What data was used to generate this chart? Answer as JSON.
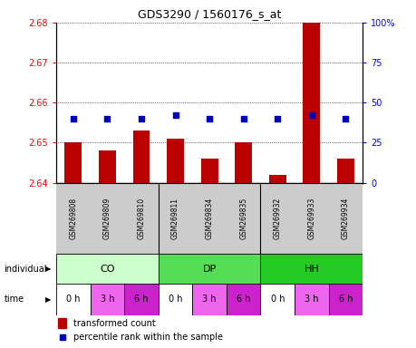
{
  "title": "GDS3290 / 1560176_s_at",
  "samples": [
    "GSM269808",
    "GSM269809",
    "GSM269810",
    "GSM269811",
    "GSM269834",
    "GSM269835",
    "GSM269932",
    "GSM269933",
    "GSM269934"
  ],
  "bar_values": [
    2.65,
    2.648,
    2.653,
    2.651,
    2.646,
    2.65,
    2.642,
    2.68,
    2.646
  ],
  "percentile_values": [
    40,
    40,
    40,
    42,
    40,
    40,
    40,
    42,
    40
  ],
  "ylim_left": [
    2.64,
    2.68
  ],
  "ylim_right": [
    0,
    100
  ],
  "yticks_left": [
    2.64,
    2.65,
    2.66,
    2.67,
    2.68
  ],
  "yticks_right": [
    0,
    25,
    50,
    75,
    100
  ],
  "bar_color": "#bb0000",
  "dot_color": "#0000bb",
  "individual_groups": [
    {
      "label": "CO",
      "start": 0,
      "end": 3,
      "color": "#ccffcc"
    },
    {
      "label": "DP",
      "start": 3,
      "end": 6,
      "color": "#55dd55"
    },
    {
      "label": "HH",
      "start": 6,
      "end": 9,
      "color": "#22cc22"
    }
  ],
  "time_labels": [
    "0 h",
    "3 h",
    "6 h",
    "0 h",
    "3 h",
    "6 h",
    "0 h",
    "3 h",
    "6 h"
  ],
  "time_colors": [
    "#ffffff",
    "#ee66ee",
    "#cc22cc",
    "#ffffff",
    "#ee66ee",
    "#cc22cc",
    "#ffffff",
    "#ee66ee",
    "#cc22cc"
  ],
  "legend_bar_label": "transformed count",
  "legend_dot_label": "percentile rank within the sample",
  "label_individual": "individual",
  "label_time": "time",
  "sample_bg_color": "#cccccc",
  "fig_width": 4.6,
  "fig_height": 3.84,
  "dpi": 100
}
